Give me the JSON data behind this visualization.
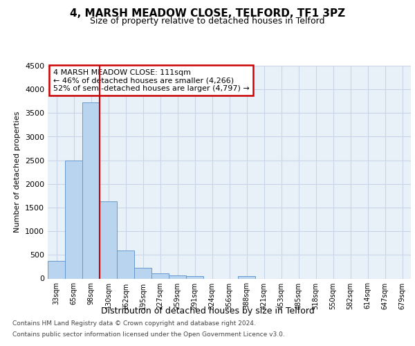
{
  "title": "4, MARSH MEADOW CLOSE, TELFORD, TF1 3PZ",
  "subtitle": "Size of property relative to detached houses in Telford",
  "xlabel": "Distribution of detached houses by size in Telford",
  "ylabel": "Number of detached properties",
  "footnote1": "Contains HM Land Registry data © Crown copyright and database right 2024.",
  "footnote2": "Contains public sector information licensed under the Open Government Licence v3.0.",
  "categories": [
    "33sqm",
    "65sqm",
    "98sqm",
    "130sqm",
    "162sqm",
    "195sqm",
    "227sqm",
    "259sqm",
    "291sqm",
    "324sqm",
    "356sqm",
    "388sqm",
    "421sqm",
    "453sqm",
    "485sqm",
    "518sqm",
    "550sqm",
    "582sqm",
    "614sqm",
    "647sqm",
    "679sqm"
  ],
  "values": [
    370,
    2500,
    3720,
    1630,
    590,
    225,
    110,
    70,
    55,
    0,
    0,
    55,
    0,
    0,
    0,
    0,
    0,
    0,
    0,
    0,
    0
  ],
  "bar_color": "#b8d4ee",
  "bar_edge_color": "#6699cc",
  "grid_color": "#c8d4e8",
  "background_color": "#e8f0f8",
  "property_bin_index": 2,
  "red_line_color": "#cc0000",
  "annotation_text_line1": "4 MARSH MEADOW CLOSE: 111sqm",
  "annotation_text_line2": "← 46% of detached houses are smaller (4,266)",
  "annotation_text_line3": "52% of semi-detached houses are larger (4,797) →",
  "annotation_box_color": "#cc0000",
  "ylim": [
    0,
    4500
  ],
  "yticks": [
    0,
    500,
    1000,
    1500,
    2000,
    2500,
    3000,
    3500,
    4000,
    4500
  ]
}
